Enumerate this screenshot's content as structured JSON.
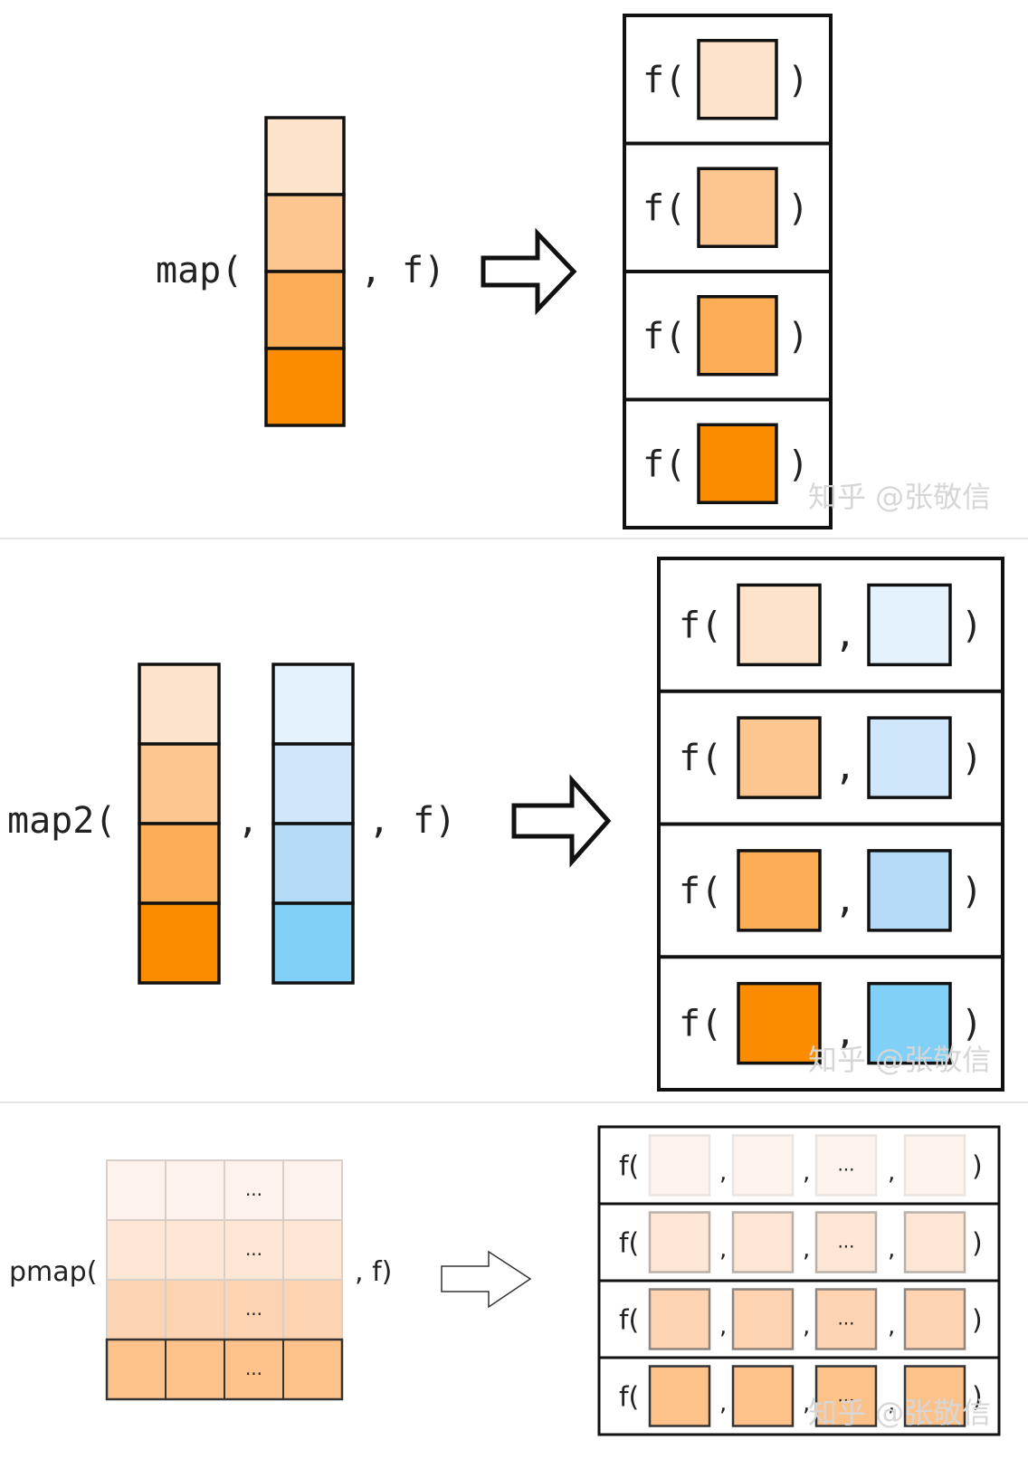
{
  "colors": {
    "orange": [
      "#fde3c9",
      "#fdc690",
      "#fdad55",
      "#fb8c00"
    ],
    "blue": [
      "#e3f2fd",
      "#cfe6fb",
      "#b4daf6",
      "#81d0f7"
    ],
    "pmap": [
      "#fdf3ec",
      "#fde6d4",
      "#fdd3b1",
      "#fdc18a"
    ],
    "stroke": "#111111",
    "divider": "#dddddd"
  },
  "map": {
    "fn_open": "map(",
    "comma": ",",
    "f_close": "f)",
    "rows": [
      {
        "f": "f(",
        "close": ")"
      },
      {
        "f": "f(",
        "close": ")"
      },
      {
        "f": "f(",
        "close": ")"
      },
      {
        "f": "f(",
        "close": ")"
      }
    ]
  },
  "map2": {
    "fn_open": "map2(",
    "comma1": ",",
    "comma2": ",",
    "f_close": "f)",
    "rows": [
      {
        "f": "f(",
        "comma": ",",
        "close": ")"
      },
      {
        "f": "f(",
        "comma": ",",
        "close": ")"
      },
      {
        "f": "f(",
        "comma": ",",
        "close": ")"
      },
      {
        "f": "f(",
        "comma": ",",
        "close": ")"
      }
    ]
  },
  "pmap": {
    "fn_open": "pmap(",
    "f_close": ", f)",
    "ellipsis": [
      "...",
      "...",
      "...",
      "..."
    ],
    "rows": [
      {
        "f": "f(",
        "c1": ",",
        "c2": ",",
        "dots": "...",
        "c3": ",",
        "close": ")"
      },
      {
        "f": "f(",
        "c1": ",",
        "c2": ",",
        "dots": "...",
        "c3": ",",
        "close": ")"
      },
      {
        "f": "f(",
        "c1": ",",
        "c2": ",",
        "dots": "...",
        "c3": ",",
        "close": ")"
      },
      {
        "f": "f(",
        "c1": ",",
        "c2": ",",
        "dots": "...",
        "c3": ",",
        "close": ")"
      }
    ]
  },
  "watermark": [
    "知乎 @张敬信",
    "知乎 @张敬信",
    "知乎 @张敬信"
  ]
}
